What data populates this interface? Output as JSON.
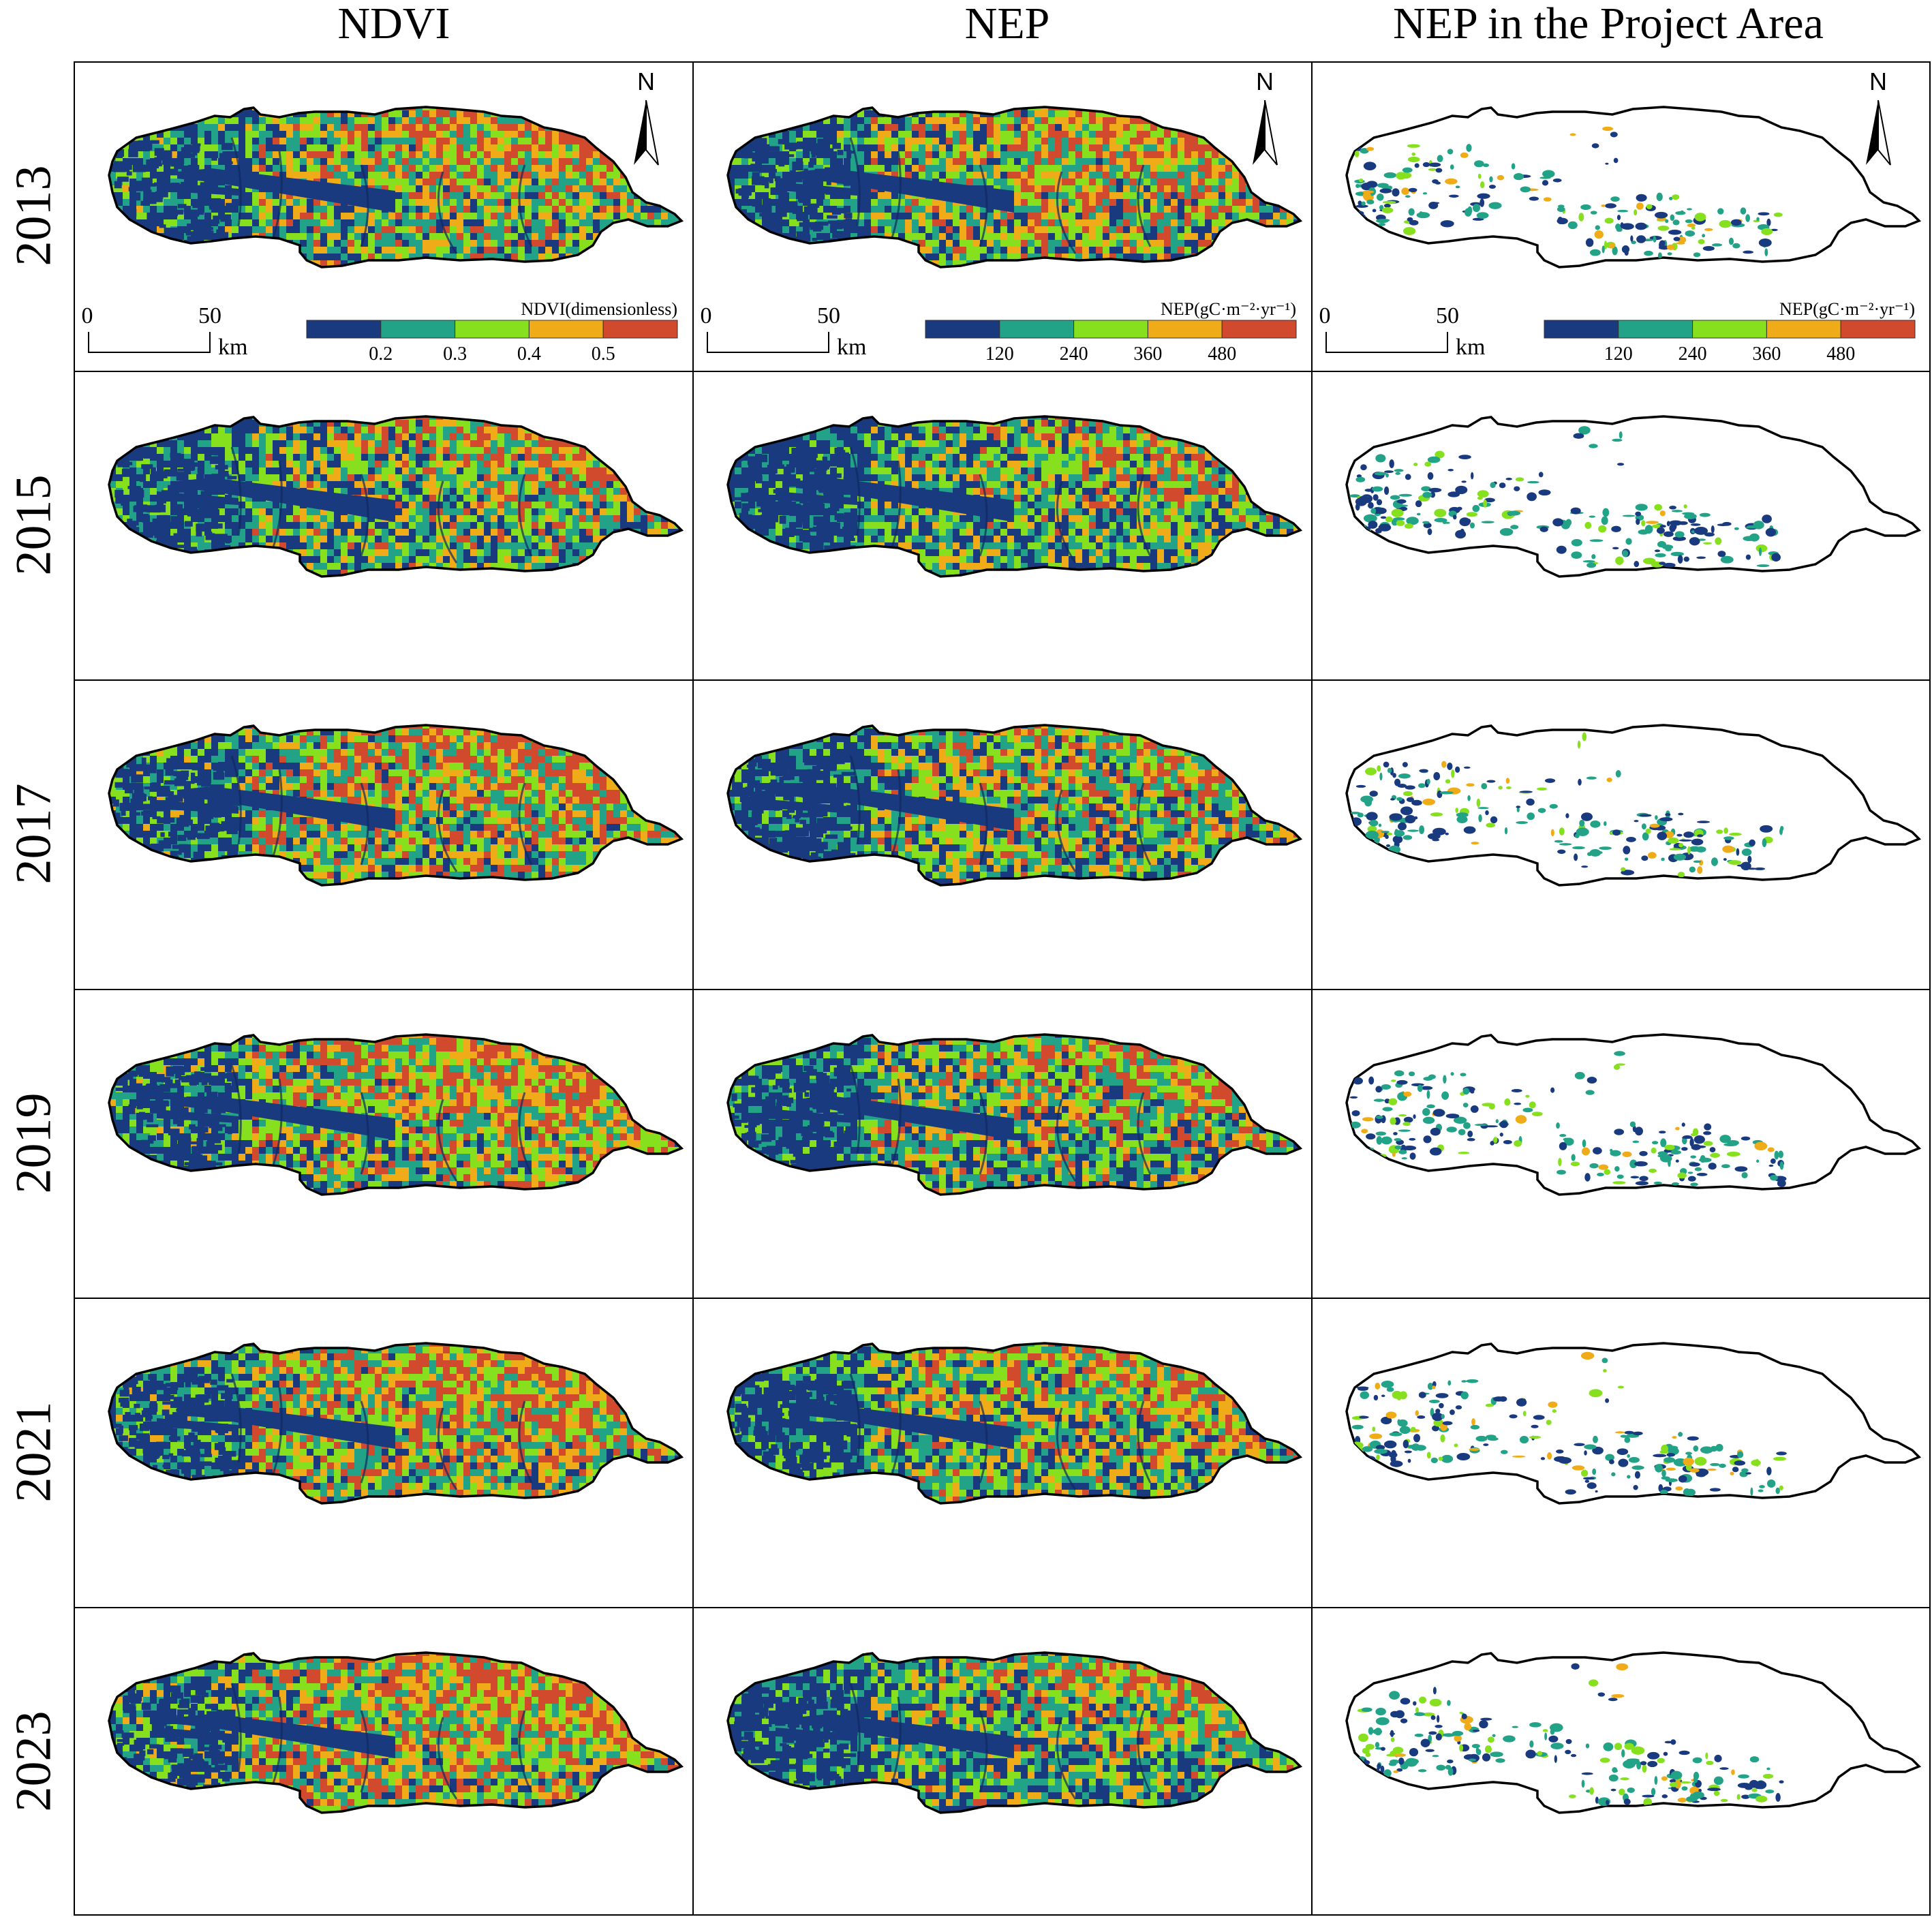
{
  "columns": [
    {
      "title": "NDVI",
      "type": "ndvi"
    },
    {
      "title": "NEP",
      "type": "nep"
    },
    {
      "title": "NEP in the Project Area",
      "type": "project"
    }
  ],
  "rows": [
    {
      "year": "2013",
      "ndvi_level": 0.55,
      "nep_level": 0.55,
      "project_level": 0.55
    },
    {
      "year": "2015",
      "ndvi_level": 0.4,
      "nep_level": 0.28,
      "project_level": 0.35
    },
    {
      "year": "2017",
      "ndvi_level": 0.62,
      "nep_level": 0.42,
      "project_level": 0.45
    },
    {
      "year": "2019",
      "ndvi_level": 0.68,
      "nep_level": 0.45,
      "project_level": 0.48
    },
    {
      "year": "2021",
      "ndvi_level": 0.66,
      "nep_level": 0.45,
      "project_level": 0.5
    },
    {
      "year": "2023",
      "ndvi_level": 0.72,
      "nep_level": 0.35,
      "project_level": 0.42
    }
  ],
  "north_label": "N",
  "scalebar": {
    "zero": "0",
    "fifty": "50",
    "unit": "km"
  },
  "legends": {
    "ndvi": {
      "title": "NDVI(dimensionless)",
      "ticks": [
        "0.2",
        "0.3",
        "0.4",
        "0.5"
      ]
    },
    "nep": {
      "title": "NEP(gC·m⁻²·yr⁻¹)",
      "ticks": [
        "120",
        "240",
        "360",
        "480"
      ]
    }
  },
  "palette": [
    "#1a3a80",
    "#22a387",
    "#86e01e",
    "#f0ac18",
    "#d24a2e"
  ]
}
